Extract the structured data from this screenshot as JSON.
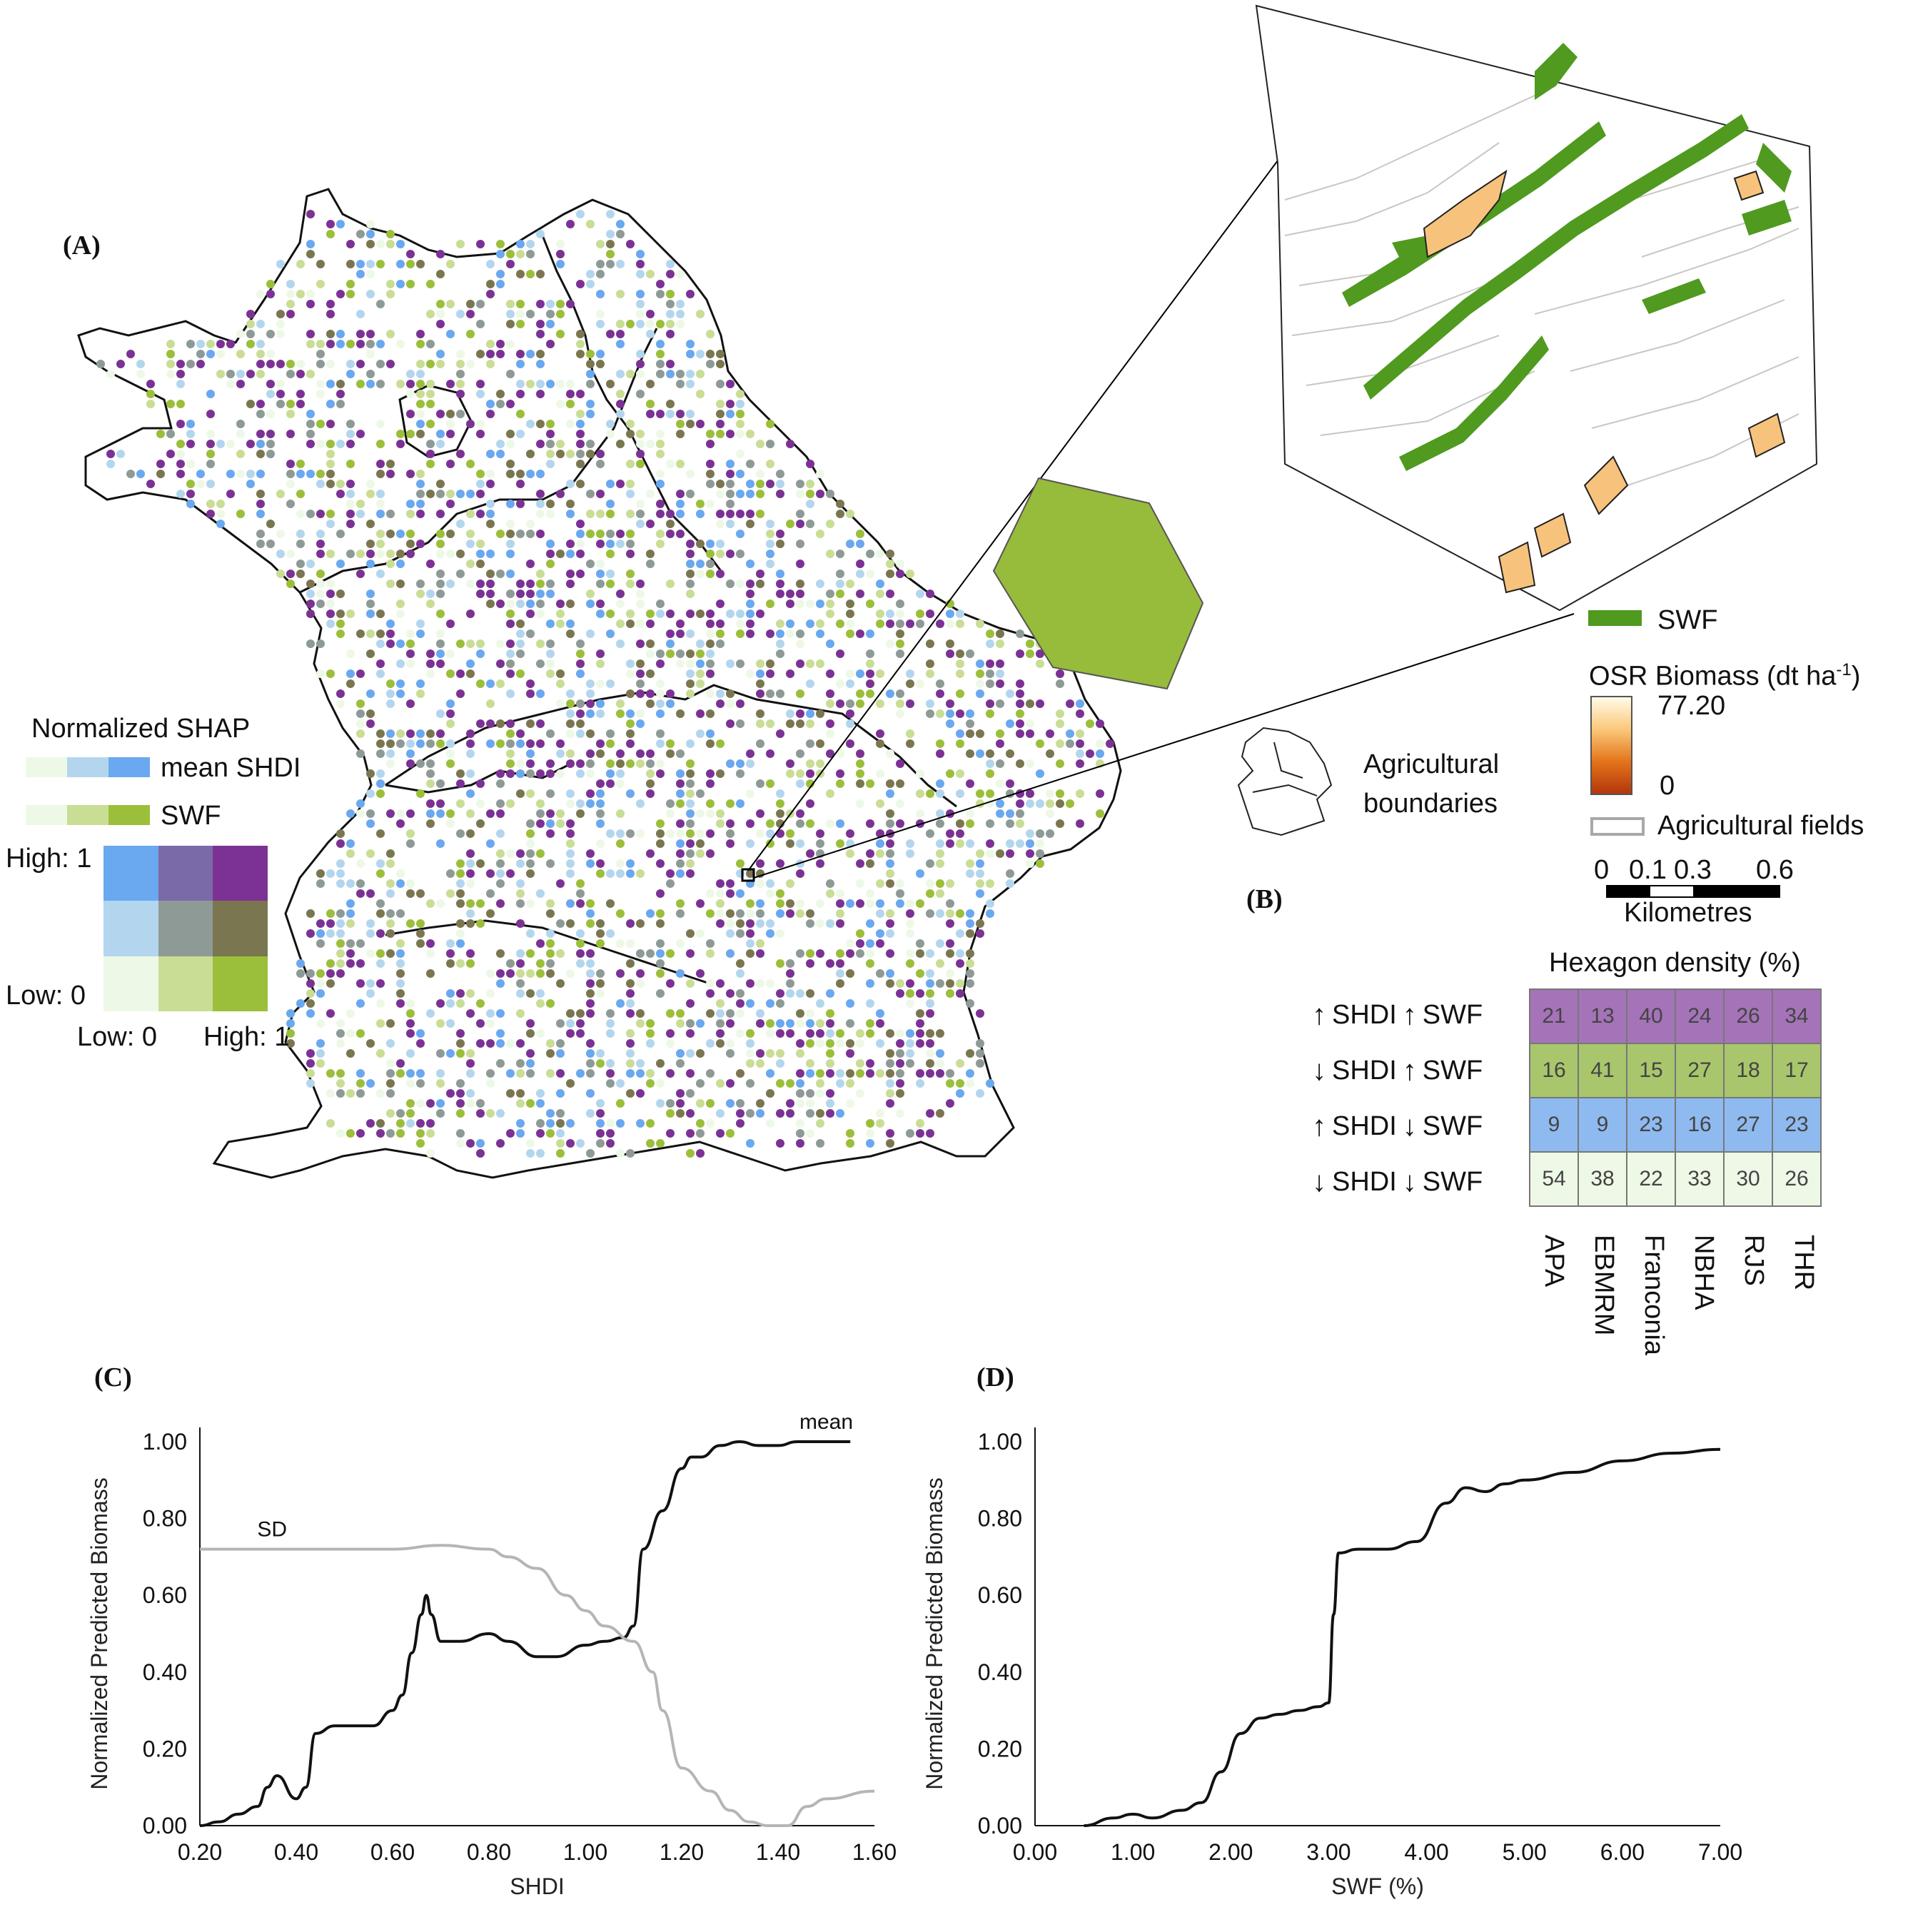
{
  "panels": {
    "a": "(A)",
    "b": "(B)",
    "c": "(C)",
    "d": "(D)"
  },
  "colors": {
    "high_both": "#7b3294",
    "low_shdi_high_swf": "#9bbf3a",
    "high_shdi_low_swf": "#6aa8ef",
    "low_both": "#eef8e6",
    "mid": "#8e9a96",
    "swf_patch": "#4f9a1f",
    "hexagon_fill": "#97bb3b"
  },
  "bivariate_legend": {
    "title": "Normalized SHAP",
    "row1": "mean SHDI",
    "row2": "SWF",
    "high_y": "High: 1",
    "low_y": "Low: 0",
    "low_x": "Low: 0",
    "high_x": "High: 1"
  },
  "inset_legend": {
    "swf": "SWF",
    "biomass_title": "OSR Biomass (dt ha",
    "biomass_sup": "-1",
    "biomass_close": ")",
    "biomass_max": "77.20",
    "biomass_min": "0",
    "boundaries": "Agricultural\nboundaries",
    "boundaries_l1": "Agricultural",
    "boundaries_l2": "boundaries",
    "fields": "Agricultural fields",
    "scale_labels": [
      "0",
      "0.1",
      "0.3",
      "0.6"
    ],
    "scale_unit": "Kilometres"
  },
  "density_table": {
    "title": "Hexagon density (%)",
    "rows": [
      {
        "label_a": "SHDI",
        "label_b": "SWF",
        "arrow_a": "↑",
        "arrow_b": "↑",
        "values": [
          "21",
          "13",
          "40",
          "24",
          "26",
          "34"
        ]
      },
      {
        "label_a": "SHDI",
        "label_b": "SWF",
        "arrow_a": "↓",
        "arrow_b": "↑",
        "values": [
          "16",
          "41",
          "15",
          "27",
          "18",
          "17"
        ]
      },
      {
        "label_a": "SHDI",
        "label_b": "SWF",
        "arrow_a": "↑",
        "arrow_b": "↓",
        "values": [
          "9",
          "9",
          "23",
          "16",
          "27",
          "23"
        ]
      },
      {
        "label_a": "SHDI",
        "label_b": "SWF",
        "arrow_a": "↓",
        "arrow_b": "↓",
        "values": [
          "54",
          "38",
          "22",
          "33",
          "30",
          "26"
        ]
      }
    ],
    "columns": [
      "APA",
      "EBMRM",
      "Franconia",
      "NBHA",
      "RJS",
      "THR"
    ]
  },
  "chart_data": [
    {
      "type": "line",
      "xlabel": "SHDI",
      "ylabel": "Normalized Predicted Biomass",
      "xlim": [
        0.2,
        1.6
      ],
      "ylim": [
        0,
        1.0
      ],
      "xticks": [
        "0.20",
        "0.40",
        "0.60",
        "0.80",
        "1.00",
        "1.20",
        "1.40",
        "1.60"
      ],
      "yticks": [
        "0.00",
        "0.20",
        "0.40",
        "0.60",
        "0.80",
        "1.00"
      ],
      "series": [
        {
          "name": "mean",
          "color": "#111111",
          "x": [
            0.2,
            0.24,
            0.28,
            0.32,
            0.34,
            0.36,
            0.4,
            0.42,
            0.44,
            0.48,
            0.52,
            0.56,
            0.6,
            0.62,
            0.64,
            0.66,
            0.67,
            0.68,
            0.7,
            0.74,
            0.8,
            0.84,
            0.9,
            0.94,
            1.0,
            1.04,
            1.08,
            1.1,
            1.12,
            1.16,
            1.2,
            1.22,
            1.24,
            1.28,
            1.32,
            1.36,
            1.4,
            1.44,
            1.48,
            1.52,
            1.55
          ],
          "y": [
            0,
            0.01,
            0.03,
            0.05,
            0.1,
            0.13,
            0.07,
            0.1,
            0.24,
            0.26,
            0.26,
            0.26,
            0.3,
            0.34,
            0.45,
            0.55,
            0.6,
            0.55,
            0.48,
            0.48,
            0.5,
            0.48,
            0.44,
            0.44,
            0.47,
            0.48,
            0.49,
            0.52,
            0.72,
            0.82,
            0.93,
            0.96,
            0.96,
            0.99,
            1.0,
            0.99,
            0.99,
            1.0,
            1.0,
            1.0,
            1.0
          ]
        },
        {
          "name": "SD",
          "color": "#b5b5b5",
          "x": [
            0.2,
            0.4,
            0.6,
            0.7,
            0.8,
            0.84,
            0.9,
            0.96,
            1.0,
            1.04,
            1.1,
            1.14,
            1.16,
            1.2,
            1.26,
            1.3,
            1.34,
            1.38,
            1.42,
            1.46,
            1.5,
            1.6
          ],
          "y": [
            0.72,
            0.72,
            0.72,
            0.73,
            0.72,
            0.7,
            0.67,
            0.6,
            0.56,
            0.52,
            0.48,
            0.4,
            0.3,
            0.15,
            0.09,
            0.04,
            0.01,
            0.0,
            0.0,
            0.05,
            0.07,
            0.09
          ]
        }
      ]
    },
    {
      "type": "line",
      "xlabel": "SWF (%)",
      "ylabel": "Normalized Predicted Biomass",
      "xlim": [
        0,
        7
      ],
      "ylim": [
        0,
        1.0
      ],
      "xticks": [
        "0.00",
        "1.00",
        "2.00",
        "3.00",
        "4.00",
        "5.00",
        "6.00",
        "7.00"
      ],
      "yticks": [
        "0.00",
        "0.20",
        "0.40",
        "0.60",
        "0.80",
        "1.00"
      ],
      "series": [
        {
          "name": "",
          "color": "#111111",
          "x": [
            0.5,
            0.8,
            1.0,
            1.2,
            1.5,
            1.7,
            1.9,
            2.1,
            2.3,
            2.5,
            2.7,
            2.9,
            3.0,
            3.05,
            3.1,
            3.3,
            3.6,
            3.9,
            4.2,
            4.4,
            4.6,
            4.8,
            5.0,
            5.5,
            6.0,
            6.5,
            7.0
          ],
          "y": [
            0,
            0.02,
            0.03,
            0.02,
            0.04,
            0.06,
            0.14,
            0.24,
            0.28,
            0.29,
            0.3,
            0.31,
            0.32,
            0.55,
            0.71,
            0.72,
            0.72,
            0.74,
            0.84,
            0.88,
            0.87,
            0.89,
            0.9,
            0.92,
            0.95,
            0.97,
            0.98
          ]
        }
      ]
    }
  ],
  "chart_labels": {
    "c_mean": "mean",
    "c_sd": "SD"
  }
}
